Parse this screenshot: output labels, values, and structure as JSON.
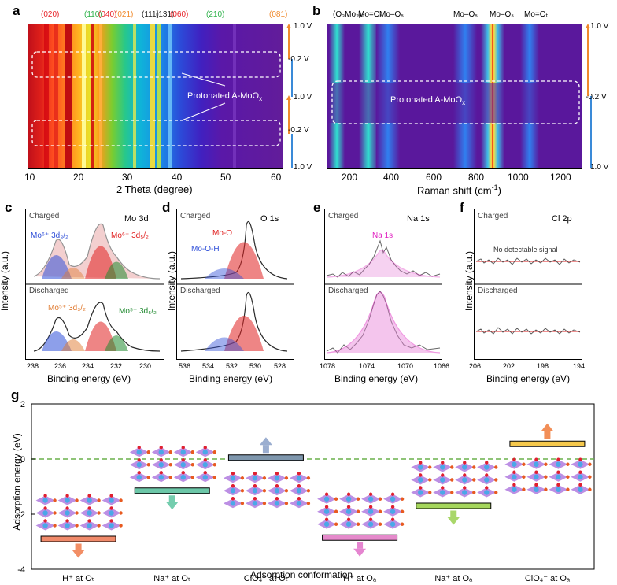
{
  "panels": {
    "a": {
      "label": "a",
      "xlabel": "2 Theta (degree)",
      "xticks": [
        "10",
        "20",
        "30",
        "40",
        "50",
        "60"
      ],
      "peak_labels": [
        {
          "text": "(020)",
          "color": "#e8242a"
        },
        {
          "text": "(110)",
          "color": "#2db24a"
        },
        {
          "text": "(040)",
          "color": "#e8242a"
        },
        {
          "text": "(021)",
          "color": "#f08a2c"
        },
        {
          "text": "(111)",
          "color": "#222222"
        },
        {
          "text": "(131)",
          "color": "#222222"
        },
        {
          "text": "(060)",
          "color": "#e8242a"
        },
        {
          "text": "(210)",
          "color": "#2db24a"
        },
        {
          "text": "(081)",
          "color": "#f08a2c"
        }
      ],
      "annotation": "Protonated A-MoO",
      "annotation_sub": "x",
      "voltages": [
        "1.0 V",
        "-0.2 V",
        "1.0 V",
        "-0.2 V",
        "1.0 V"
      ]
    },
    "b": {
      "label": "b",
      "xlabel": "Raman shift (cm",
      "xlabel_sup": "-1",
      "xlabel_end": ")",
      "xticks": [
        "200",
        "400",
        "600",
        "800",
        "1000",
        "1200"
      ],
      "peak_labels": [
        "(O₃Mo₂)ₙ",
        "Mo=Oₛ",
        "Mo–Oₛ",
        "Mo–Oₛ",
        "Mo–Oₛ",
        "Mo=Oₜ"
      ],
      "annotation": "Protonated A-MoO",
      "annotation_sub": "x",
      "voltages": [
        "1.0 V",
        "-0.2 V",
        "1.0 V"
      ]
    },
    "c": {
      "label": "c",
      "title": "Mo 3d",
      "ylabel": "Intensity (a.u.)",
      "xlabel": "Binding energy (eV)",
      "xticks": [
        "238",
        "236",
        "234",
        "232",
        "230"
      ],
      "charged": "Charged",
      "discharged": "Discharged",
      "mo6_a": "Mo⁶⁺ 3d₃/₂",
      "mo6_b": "Mo⁶⁺ 3d₅/₂",
      "mo5_a": "Mo⁵⁺ 3d₃/₂",
      "mo5_b": "Mo⁵⁺ 3d₅/₂"
    },
    "d": {
      "label": "d",
      "title": "O 1s",
      "ylabel": "Intensity (a.u.)",
      "xlabel": "Binding energy (eV)",
      "xticks": [
        "536",
        "534",
        "532",
        "530",
        "528"
      ],
      "charged": "Charged",
      "discharged": "Discharged",
      "peak1": "Mo-O",
      "peak2": "Mo-O-H"
    },
    "e": {
      "label": "e",
      "title": "Na 1s",
      "xlabel": "Binding energy (eV)",
      "xticks": [
        "1078",
        "1074",
        "1070",
        "1066"
      ],
      "charged": "Charged",
      "discharged": "Discharged",
      "peak": "Na 1s"
    },
    "f": {
      "label": "f",
      "title": "Cl 2p",
      "ylabel": "Intensity (a.u.)",
      "xlabel": "Binding energy (eV)",
      "xticks": [
        "206",
        "202",
        "198",
        "194"
      ],
      "charged": "Charged",
      "discharged": "Discharged",
      "note": "No detectable signal"
    }
  },
  "chart_data": {
    "type": "bar",
    "title": "",
    "xlabel": "Adsorption conformation",
    "ylabel": "Adsorption energy (eV)",
    "ylim": [
      -4,
      2
    ],
    "yticks": [
      "2",
      "0",
      "-2",
      "-4"
    ],
    "categories": [
      "H⁺ at Oₜ",
      "Na⁺ at Oₜ",
      "ClO₄⁻ at Oₜ",
      "H⁺ at Oₐ",
      "Na⁺ at Oₐ",
      "ClO₄⁻ at Oₐ"
    ],
    "values": [
      -2.9,
      -1.15,
      0.05,
      -2.85,
      -1.7,
      0.55
    ],
    "colors": [
      "#f08a6a",
      "#6cc7a8",
      "#7f97ad",
      "#e58acb",
      "#a5d65c",
      "#f5c84c"
    ],
    "arrow_colors": [
      "#f07a4a",
      "#5cc4a0",
      "#8aa0c8",
      "#e070c8",
      "#9ad050",
      "#f07a3a"
    ],
    "zero_line": "dashed"
  },
  "panel_g_label": "g"
}
